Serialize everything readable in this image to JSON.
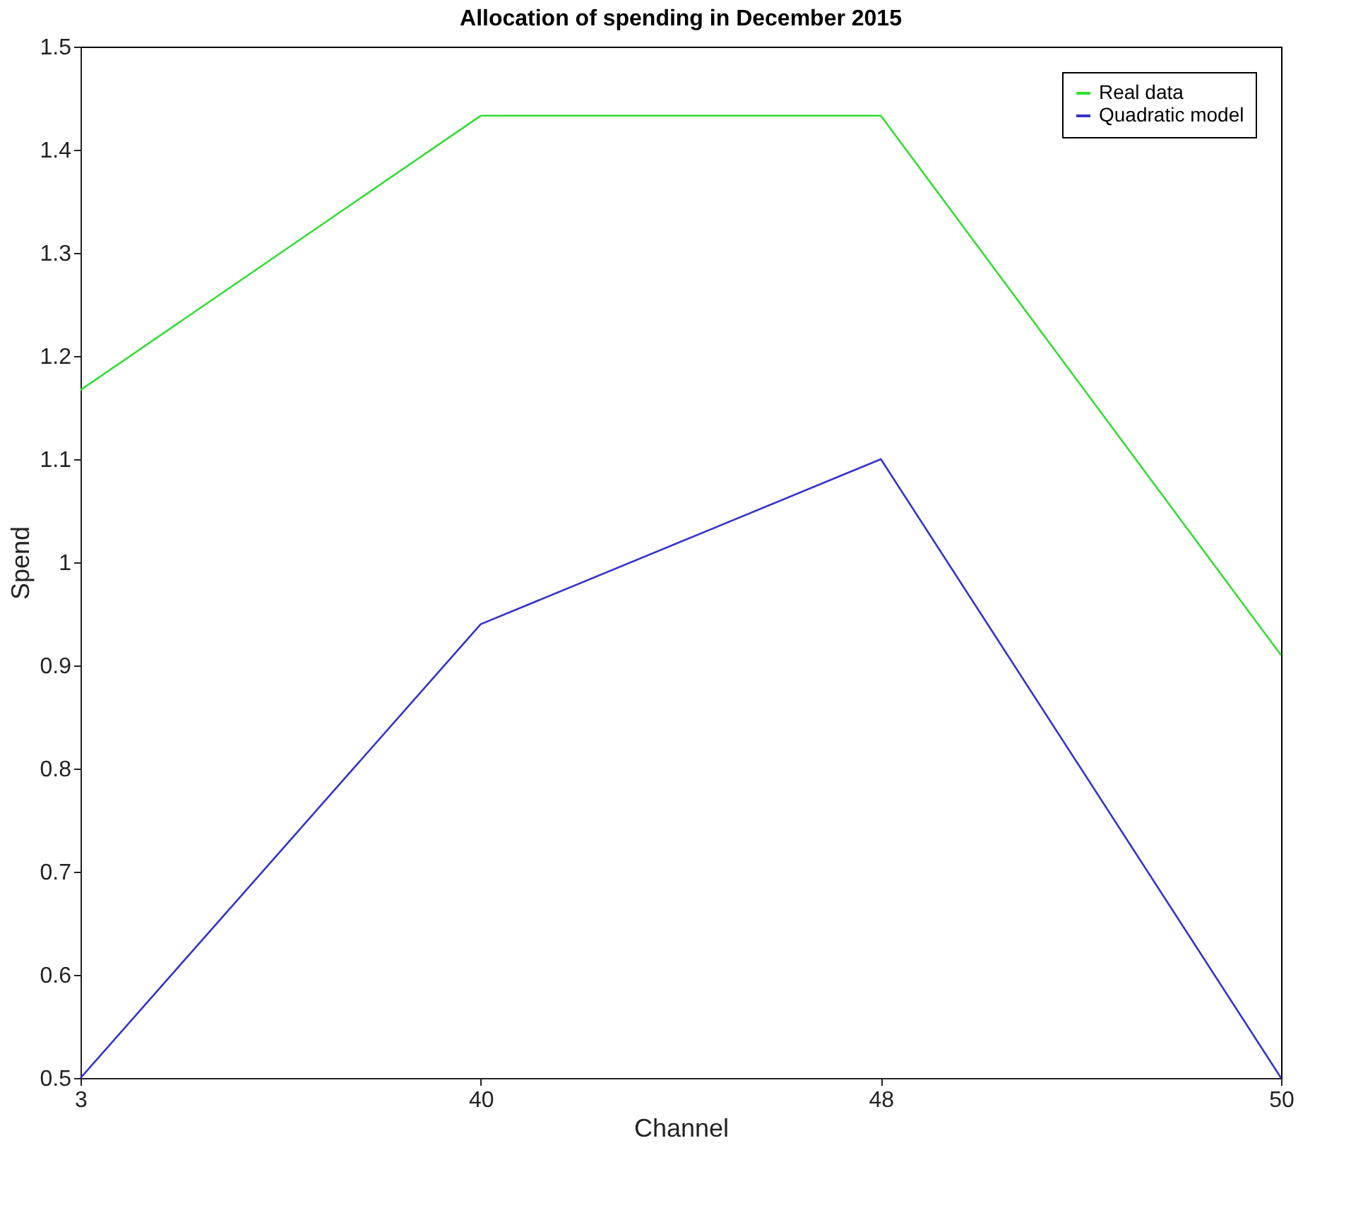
{
  "chart_data": {
    "type": "line",
    "title": "Allocation of spending in December 2015",
    "xlabel": "Channel",
    "ylabel": "Spend",
    "categories": [
      "3",
      "40",
      "48",
      "50"
    ],
    "series": [
      {
        "name": "Real data",
        "color": "#33dd33",
        "values": [
          1.167,
          1.433,
          1.433,
          0.91
        ]
      },
      {
        "name": "Quadratic model",
        "color": "#3333cc",
        "values": [
          0.5,
          0.94,
          1.1,
          0.5
        ]
      }
    ],
    "ylim": [
      0.5,
      1.5
    ],
    "yticks": [
      0.5,
      0.6,
      0.7,
      0.8,
      0.9,
      {
        "value": 1,
        "label": "1"
      },
      1.1,
      1.2,
      1.3,
      1.4,
      1.5
    ],
    "grid": false,
    "legend": "top right",
    "line_style": "solid",
    "marker": "none"
  }
}
